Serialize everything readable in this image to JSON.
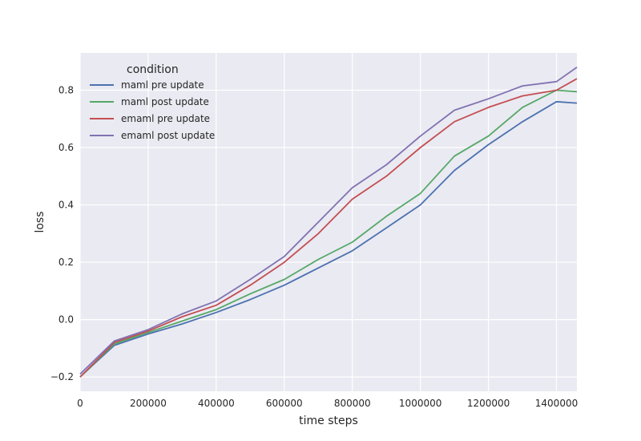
{
  "chart_data": {
    "type": "line",
    "xlabel": "time steps",
    "ylabel": "loss",
    "xlim": [
      0,
      1460000
    ],
    "ylim": [
      -0.25,
      0.93
    ],
    "x_ticks": [
      0,
      200000,
      400000,
      600000,
      800000,
      1000000,
      1200000,
      1400000
    ],
    "y_ticks": [
      -0.2,
      0.0,
      0.2,
      0.4,
      0.6,
      0.8
    ],
    "x_tick_labels": [
      "0",
      "200000",
      "400000",
      "600000",
      "800000",
      "1000000",
      "1200000",
      "1400000"
    ],
    "y_tick_labels": [
      "−0.2",
      "0.0",
      "0.2",
      "0.4",
      "0.6",
      "0.8"
    ],
    "grid": true,
    "legend": {
      "title": "condition",
      "position": "upper-left"
    },
    "x": [
      0,
      100000,
      200000,
      300000,
      400000,
      500000,
      600000,
      700000,
      800000,
      900000,
      1000000,
      1100000,
      1200000,
      1300000,
      1400000,
      1460000
    ],
    "series": [
      {
        "name": "maml pre update",
        "color": "#4c72b0",
        "values": [
          -0.2,
          -0.09,
          -0.05,
          -0.015,
          0.025,
          0.07,
          0.12,
          0.18,
          0.24,
          0.32,
          0.4,
          0.52,
          0.61,
          0.69,
          0.76,
          0.755
        ]
      },
      {
        "name": "maml post update",
        "color": "#55a868",
        "values": [
          -0.2,
          -0.085,
          -0.045,
          -0.005,
          0.035,
          0.09,
          0.14,
          0.21,
          0.27,
          0.36,
          0.44,
          0.57,
          0.64,
          0.74,
          0.8,
          0.795
        ]
      },
      {
        "name": "emaml pre update",
        "color": "#c44e52",
        "values": [
          -0.2,
          -0.08,
          -0.04,
          0.01,
          0.05,
          0.12,
          0.2,
          0.3,
          0.42,
          0.5,
          0.6,
          0.69,
          0.74,
          0.78,
          0.8,
          0.84
        ]
      },
      {
        "name": "emaml post update",
        "color": "#8172b2",
        "values": [
          -0.19,
          -0.075,
          -0.035,
          0.02,
          0.065,
          0.14,
          0.22,
          0.34,
          0.46,
          0.54,
          0.64,
          0.73,
          0.77,
          0.815,
          0.83,
          0.88
        ]
      }
    ]
  }
}
